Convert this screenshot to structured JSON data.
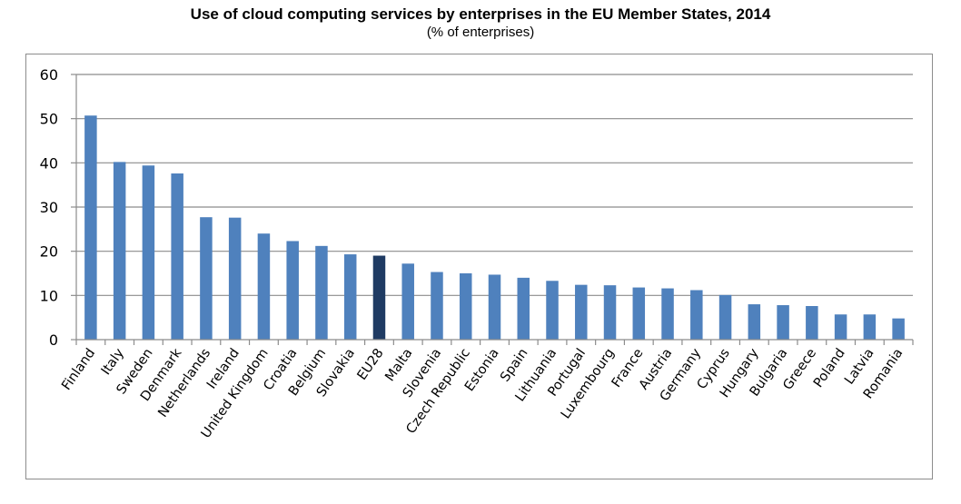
{
  "chart_data": {
    "type": "bar",
    "title": "Use of cloud computing services by enterprises in the EU Member States, 2014",
    "subtitle": "(% of enterprises)",
    "xlabel": "",
    "ylabel": "",
    "ylim": [
      0,
      60
    ],
    "yticks": [
      0,
      10,
      20,
      30,
      40,
      50,
      60
    ],
    "grid": true,
    "legend": "none",
    "categories": [
      "Finland",
      "Italy",
      "Sweden",
      "Denmark",
      "Netherlands",
      "Ireland",
      "United Kingdom",
      "Croatia",
      "Belgium",
      "Slovakia",
      "EU28",
      "Malta",
      "Slovenia",
      "Czech Republic",
      "Estonia",
      "Spain",
      "Lithuania",
      "Portugal",
      "Luxembourg",
      "France",
      "Austria",
      "Germany",
      "Cyprus",
      "Hungary",
      "Bulgaria",
      "Greece",
      "Poland",
      "Latvia",
      "Romania"
    ],
    "values": [
      50.7,
      40.2,
      39.4,
      37.6,
      27.7,
      27.6,
      24.0,
      22.3,
      21.2,
      19.3,
      19.0,
      17.2,
      15.3,
      15.0,
      14.7,
      14.0,
      13.3,
      12.4,
      12.3,
      11.8,
      11.6,
      11.2,
      10.1,
      8.0,
      7.8,
      7.6,
      5.7,
      5.7,
      4.8
    ],
    "highlight": "EU28",
    "colors": {
      "bar": "#4F81BD",
      "highlight": "#1F3B63",
      "grid": "#8C8C8C",
      "axis": "#8C8C8C"
    }
  }
}
